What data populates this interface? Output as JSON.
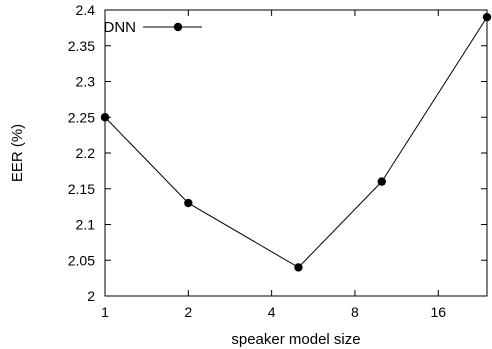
{
  "chart_data": {
    "type": "line",
    "title": "",
    "xlabel": "speaker model size",
    "ylabel": "EER (%)",
    "x_scale": "log2",
    "x_ticks": [
      {
        "value": 1,
        "label": "1"
      },
      {
        "value": 2,
        "label": "2"
      },
      {
        "value": 4,
        "label": "4"
      },
      {
        "value": 8,
        "label": "8"
      },
      {
        "value": 16,
        "label": "16"
      }
    ],
    "xlim": [
      1,
      24
    ],
    "ylim": [
      2,
      2.4
    ],
    "y_ticks": [
      {
        "value": 2,
        "label": "2"
      },
      {
        "value": 2.05,
        "label": "2.05"
      },
      {
        "value": 2.1,
        "label": "2.1"
      },
      {
        "value": 2.15,
        "label": "2.15"
      },
      {
        "value": 2.2,
        "label": "2.2"
      },
      {
        "value": 2.25,
        "label": "2.25"
      },
      {
        "value": 2.3,
        "label": "2.3"
      },
      {
        "value": 2.35,
        "label": "2.35"
      },
      {
        "value": 2.4,
        "label": "2.4"
      }
    ],
    "grid": false,
    "legend_position": "top-left",
    "series": [
      {
        "name": "DNN",
        "color": "#000000",
        "marker": "circle",
        "x": [
          1,
          2,
          5,
          10,
          24
        ],
        "y": [
          2.25,
          2.13,
          2.04,
          2.16,
          2.39
        ]
      }
    ]
  }
}
